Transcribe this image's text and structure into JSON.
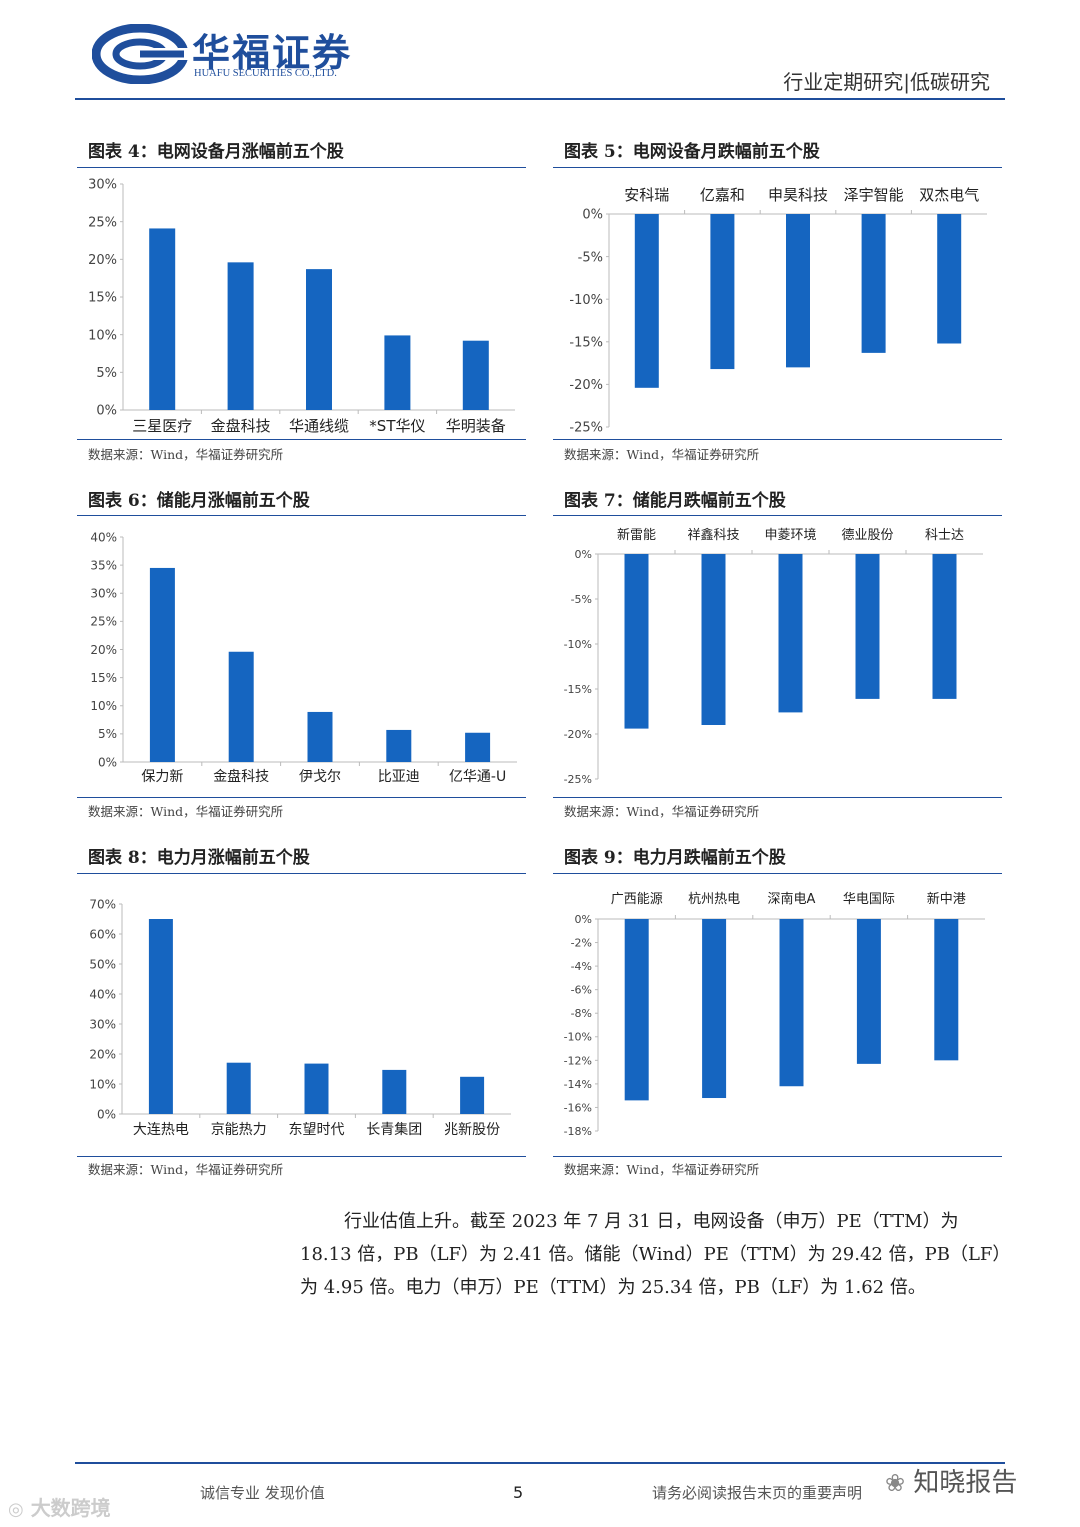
{
  "header": {
    "company_cn": "华福证券",
    "company_en": "HUAFU SECURITIES CO.,LTD.",
    "report_type": "行业定期研究|低碳研究",
    "colors": {
      "brand": "#1f4e9c",
      "bar": "#1565c0"
    }
  },
  "figures": [
    {
      "title": "图表 4：电网设备月涨幅前五个股",
      "source": "数据来源：Wind，华福证券研究所"
    },
    {
      "title": "图表 5：电网设备月跌幅前五个股",
      "source": "数据来源：Wind，华福证券研究所"
    },
    {
      "title": "图表 6：储能月涨幅前五个股",
      "source": "数据来源：Wind，华福证券研究所"
    },
    {
      "title": "图表 7：储能月跌幅前五个股",
      "source": "数据来源：Wind，华福证券研究所"
    },
    {
      "title": "图表 8：电力月涨幅前五个股",
      "source": "数据来源：Wind，华福证券研究所"
    },
    {
      "title": "图表 9：电力月跌幅前五个股",
      "source": "数据来源：Wind，华福证券研究所"
    }
  ],
  "chart_data": [
    {
      "type": "bar",
      "title": "图表 4：电网设备月涨幅前五个股",
      "categories": [
        "三星医疗",
        "金盘科技",
        "华通线缆",
        "*ST华仪",
        "华明装备"
      ],
      "values": [
        24.1,
        19.6,
        18.7,
        9.9,
        9.2
      ],
      "ylim": [
        0,
        30
      ],
      "yticks": [
        0,
        5,
        10,
        15,
        20,
        25,
        30
      ],
      "ytick_labels": [
        "0%",
        "5%",
        "10%",
        "15%",
        "20%",
        "25%",
        "30%"
      ],
      "category_axis": "bottom"
    },
    {
      "type": "bar",
      "title": "图表 5：电网设备月跌幅前五个股",
      "categories": [
        "安科瑞",
        "亿嘉和",
        "申昊科技",
        "泽宇智能",
        "双杰电气"
      ],
      "values": [
        -20.4,
        -18.2,
        -18.0,
        -16.3,
        -15.2
      ],
      "ylim": [
        -25,
        0
      ],
      "yticks": [
        0,
        -5,
        -10,
        -15,
        -20,
        -25
      ],
      "ytick_labels": [
        "0%",
        "-5%",
        "-10%",
        "-15%",
        "-20%",
        "-25%"
      ],
      "category_axis": "top"
    },
    {
      "type": "bar",
      "title": "图表 6：储能月涨幅前五个股",
      "categories": [
        "保力新",
        "金盘科技",
        "伊戈尔",
        "比亚迪",
        "亿华通-U"
      ],
      "values": [
        34.5,
        19.6,
        8.9,
        5.7,
        5.2
      ],
      "ylim": [
        0,
        40
      ],
      "yticks": [
        0,
        5,
        10,
        15,
        20,
        25,
        30,
        35,
        40
      ],
      "ytick_labels": [
        "0%",
        "5%",
        "10%",
        "15%",
        "20%",
        "25%",
        "30%",
        "35%",
        "40%"
      ],
      "category_axis": "bottom"
    },
    {
      "type": "bar",
      "title": "图表 7：储能月跌幅前五个股",
      "categories": [
        "新雷能",
        "祥鑫科技",
        "申菱环境",
        "德业股份",
        "科士达"
      ],
      "values": [
        -19.4,
        -19.0,
        -17.6,
        -16.1,
        -16.1
      ],
      "ylim": [
        -25,
        0
      ],
      "yticks": [
        0,
        -5,
        -10,
        -15,
        -20,
        -25
      ],
      "ytick_labels": [
        "0%",
        "-5%",
        "-10%",
        "-15%",
        "-20%",
        "-25%"
      ],
      "category_axis": "top"
    },
    {
      "type": "bar",
      "title": "图表 8：电力月涨幅前五个股",
      "categories": [
        "大连热电",
        "京能热力",
        "东望时代",
        "长青集团",
        "兆新股份"
      ],
      "values": [
        65.0,
        17.1,
        16.8,
        14.7,
        12.4
      ],
      "ylim": [
        0,
        70
      ],
      "yticks": [
        0,
        10,
        20,
        30,
        40,
        50,
        60,
        70
      ],
      "ytick_labels": [
        "0%",
        "10%",
        "20%",
        "30%",
        "40%",
        "50%",
        "60%",
        "70%"
      ],
      "category_axis": "bottom"
    },
    {
      "type": "bar",
      "title": "图表 9：电力月跌幅前五个股",
      "categories": [
        "广西能源",
        "杭州热电",
        "深南电A",
        "华电国际",
        "新中港"
      ],
      "values": [
        -15.4,
        -15.2,
        -14.2,
        -12.3,
        -12.0
      ],
      "ylim": [
        -18,
        0
      ],
      "yticks": [
        0,
        -2,
        -4,
        -6,
        -8,
        -10,
        -12,
        -14,
        -16,
        -18
      ],
      "ytick_labels": [
        "0%",
        "-2%",
        "-4%",
        "-6%",
        "-8%",
        "-10%",
        "-12%",
        "-14%",
        "-16%",
        "-18%"
      ],
      "category_axis": "top"
    }
  ],
  "body": {
    "para_lines": [
      "行业估值上升。截至 2023 年 7 月 31 日，电网设备（申万）PE（TTM）为",
      "18.13 倍，PB（LF）为 2.41 倍。储能（Wind）PE（TTM）为 29.42 倍，PB（LF）",
      "为 4.95 倍。电力（申万）PE（TTM）为 25.34 倍，PB（LF）为 1.62 倍。"
    ]
  },
  "footer": {
    "slogan": "诚信专业  发现价值",
    "page_number": "5",
    "disclaimer": "请务必阅读报告末页的重要声明",
    "watermark_left": "大数跨境",
    "watermark_right": "知晓报告"
  }
}
